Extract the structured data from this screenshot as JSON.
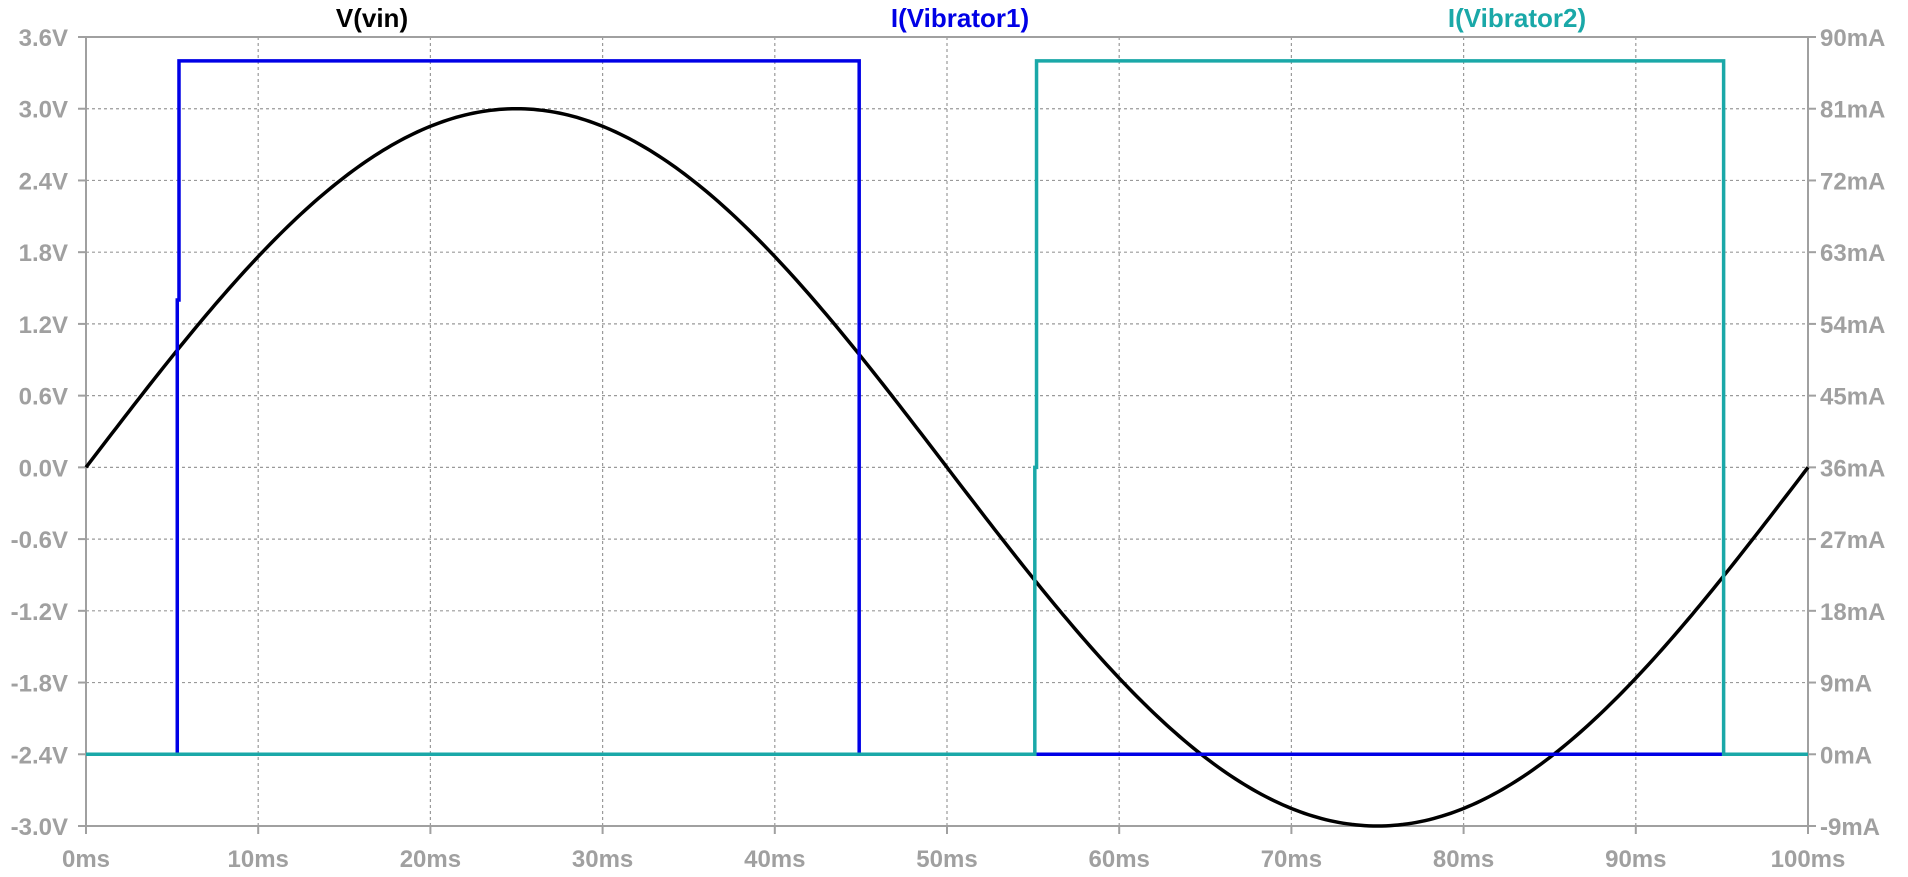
{
  "chart_data": {
    "type": "line",
    "legend": [
      {
        "label": "V(vin)",
        "color": "#000000"
      },
      {
        "label": "I(Vibrator1)",
        "color": "#0000e6"
      },
      {
        "label": "I(Vibrator2)",
        "color": "#1aa8a8"
      }
    ],
    "x_axis": {
      "range": [
        0,
        100
      ],
      "ticks": [
        0,
        10,
        20,
        30,
        40,
        50,
        60,
        70,
        80,
        90,
        100
      ],
      "tick_labels": [
        "0ms",
        "10ms",
        "20ms",
        "30ms",
        "40ms",
        "50ms",
        "60ms",
        "70ms",
        "80ms",
        "90ms",
        "100ms"
      ]
    },
    "y_left": {
      "range": [
        -3.0,
        3.6
      ],
      "ticks": [
        3.6,
        3.0,
        2.4,
        1.8,
        1.2,
        0.6,
        0.0,
        -0.6,
        -1.2,
        -1.8,
        -2.4,
        -3.0
      ],
      "tick_labels": [
        "3.6V",
        "3.0V",
        "2.4V",
        "1.8V",
        "1.2V",
        "0.6V",
        "0.0V",
        "-0.6V",
        "-1.2V",
        "-1.8V",
        "-2.4V",
        "-3.0V"
      ]
    },
    "y_right": {
      "range": [
        -9,
        90
      ],
      "ticks": [
        90,
        81,
        72,
        63,
        54,
        45,
        36,
        27,
        18,
        9,
        0,
        -9
      ],
      "tick_labels": [
        "90mA",
        "81mA",
        "72mA",
        "63mA",
        "54mA",
        "45mA",
        "36mA",
        "27mA",
        "18mA",
        "9mA",
        "0mA",
        "-9mA"
      ]
    },
    "grid": true,
    "series": [
      {
        "name": "V(vin)",
        "axis": "left",
        "color": "#000000",
        "function": "sine",
        "amplitude": 3.0,
        "period": 100,
        "x_range": [
          0,
          100
        ]
      },
      {
        "name": "I(Vibrator1)",
        "axis": "right",
        "color": "#0000e6",
        "points": [
          [
            0,
            0
          ],
          [
            5.3,
            0
          ],
          [
            5.3,
            57
          ],
          [
            5.4,
            57
          ],
          [
            5.4,
            87
          ],
          [
            44.9,
            87
          ],
          [
            44.9,
            0
          ],
          [
            100,
            0
          ]
        ]
      },
      {
        "name": "I(Vibrator2)",
        "axis": "right",
        "color": "#1aa8a8",
        "points": [
          [
            0,
            0
          ],
          [
            55.1,
            0
          ],
          [
            55.1,
            36
          ],
          [
            55.2,
            36
          ],
          [
            55.2,
            87
          ],
          [
            95.1,
            87
          ],
          [
            95.1,
            0
          ],
          [
            100,
            0
          ]
        ]
      }
    ]
  }
}
